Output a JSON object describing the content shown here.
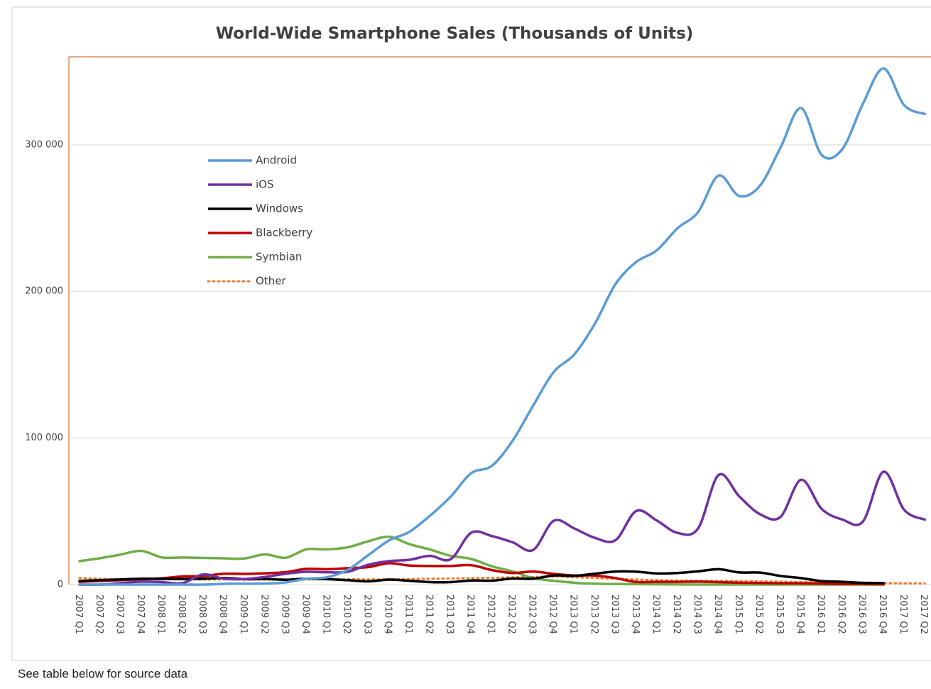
{
  "chart_data": {
    "type": "line",
    "title": "World-Wide Smartphone Sales (Thousands of Units)",
    "categories": [
      "2007 Q1",
      "2007 Q2",
      "2007 Q3",
      "2007 Q4",
      "2008 Q1",
      "2008 Q2",
      "2008 Q3",
      "2008 Q4",
      "2009 Q1",
      "2009 Q2",
      "2009 Q3",
      "2009 Q4",
      "2010 Q1",
      "2010 Q2",
      "2010 Q3",
      "2010 Q4",
      "2011 Q1",
      "2011 Q2",
      "2011 Q3",
      "2011 Q4",
      "2012 Q1",
      "2012 Q2",
      "2012 Q3",
      "2012 Q4",
      "2013 Q1",
      "2013 Q2",
      "2013 Q3",
      "2013 Q4",
      "2014 Q1",
      "2014 Q2",
      "2014 Q3",
      "2014 Q4",
      "2015 Q1",
      "2015 Q2",
      "2015 Q3",
      "2015 Q4",
      "2016 Q1",
      "2016 Q2",
      "2016 Q3",
      "2016 Q4",
      "2017 Q1",
      "2017 Q2"
    ],
    "series": [
      {
        "name": "Android",
        "color": "#5b9bd5",
        "values": [
          0,
          0,
          0,
          0,
          0,
          0,
          0,
          500,
          600,
          700,
          1500,
          4000,
          5000,
          10000,
          20000,
          30000,
          36000,
          47000,
          60000,
          76000,
          81000,
          98000,
          122000,
          145000,
          157000,
          178000,
          205000,
          220000,
          228000,
          243000,
          254000,
          279000,
          265000,
          272000,
          298000,
          325000,
          293000,
          297000,
          328000,
          352000,
          327000,
          321000
        ]
      },
      {
        "name": "iOS",
        "color": "#7030a0",
        "values": [
          0,
          0,
          1000,
          2000,
          1700,
          1000,
          6900,
          4000,
          3800,
          5200,
          7400,
          8700,
          8400,
          8700,
          13500,
          16000,
          16900,
          19600,
          17300,
          35400,
          33100,
          28900,
          23600,
          43500,
          38300,
          31900,
          30300,
          50200,
          43700,
          35300,
          38200,
          74800,
          60200,
          48100,
          46100,
          71500,
          51600,
          44400,
          43000,
          77000,
          51000,
          44300
        ]
      },
      {
        "name": "Windows",
        "color": "#000000",
        "values": [
          2500,
          3000,
          3500,
          4000,
          3900,
          3800,
          4000,
          4500,
          3700,
          3800,
          3300,
          4000,
          3700,
          3000,
          2200,
          3400,
          2600,
          1700,
          1700,
          2800,
          2700,
          4100,
          4000,
          6200,
          6000,
          7400,
          8900,
          8800,
          7600,
          7900,
          9000,
          10500,
          8300,
          8200,
          5900,
          4400,
          2400,
          1900,
          1200,
          1100,
          null,
          null
        ]
      },
      {
        "name": "Blackberry",
        "color": "#c00000",
        "values": [
          1900,
          2500,
          3000,
          3700,
          4300,
          5600,
          5800,
          7400,
          7300,
          7700,
          8500,
          10700,
          10500,
          11200,
          11900,
          14600,
          13000,
          12700,
          12700,
          13200,
          9900,
          7900,
          8900,
          7300,
          6200,
          6200,
          4400,
          1800,
          1900,
          1900,
          2000,
          1700,
          1300,
          1100,
          900,
          900,
          700,
          400,
          400,
          200,
          null,
          null
        ]
      },
      {
        "name": "Symbian",
        "color": "#70ad47",
        "values": [
          16000,
          18000,
          20500,
          23000,
          18500,
          18500,
          18200,
          17900,
          17800,
          20600,
          18300,
          24000,
          24000,
          25400,
          29500,
          32600,
          27600,
          23900,
          19600,
          17500,
          12500,
          9000,
          4400,
          2600,
          1300,
          600,
          400,
          300,
          200,
          100,
          0,
          0,
          0,
          0,
          0,
          0,
          0,
          0,
          0,
          0,
          null,
          null
        ]
      },
      {
        "name": "Other",
        "color": "#ed7d31",
        "dash": "dotted",
        "values": [
          4500,
          4000,
          3500,
          3800,
          3600,
          3500,
          3400,
          3500,
          3300,
          3400,
          3200,
          3500,
          3600,
          3700,
          3500,
          3600,
          3800,
          4000,
          4200,
          4400,
          4600,
          5000,
          5200,
          5500,
          5000,
          4500,
          4000,
          3500,
          3000,
          2800,
          2600,
          2500,
          2400,
          2200,
          2000,
          1800,
          1600,
          1400,
          1200,
          1000,
          900,
          800
        ]
      }
    ],
    "ylim": [
      0,
      360000
    ],
    "yticks": [
      0,
      {
        "value": 100000,
        "label": "100 000"
      },
      {
        "value": 200000,
        "label": "200 000"
      },
      {
        "value": 300000,
        "label": "300 000"
      }
    ],
    "grid": true
  },
  "footer": "See table below for source data"
}
